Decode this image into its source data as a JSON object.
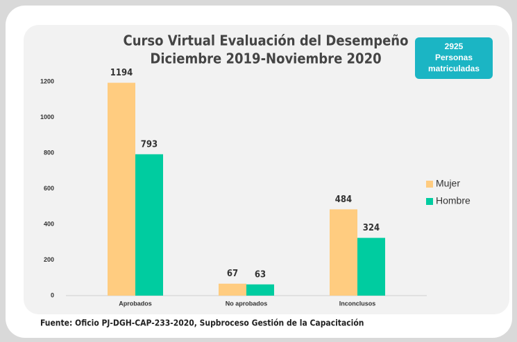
{
  "chart_data": {
    "type": "bar",
    "title": [
      "Curso Virtual Evaluación del Desempeño",
      "Diciembre 2019-Noviembre 2020"
    ],
    "annotation": [
      "2925",
      "Personas",
      "matriculadas"
    ],
    "source": "Fuente: Oficio PJ-DGH-CAP-233-2020, Supbroceso Gestión de la Capacitación",
    "categories": [
      "Aprobados",
      "No aprobados",
      "Inconclusos"
    ],
    "series": [
      {
        "name": "Mujer",
        "color": "#ffcc80",
        "values": [
          1194,
          67,
          484
        ]
      },
      {
        "name": "Hombre",
        "color": "#00cca0",
        "values": [
          793,
          63,
          324
        ]
      }
    ],
    "ylim": [
      0,
      1200
    ],
    "yticks": [
      0,
      200,
      400,
      600,
      800,
      1000,
      1200
    ],
    "grid": false,
    "legend": "right"
  }
}
